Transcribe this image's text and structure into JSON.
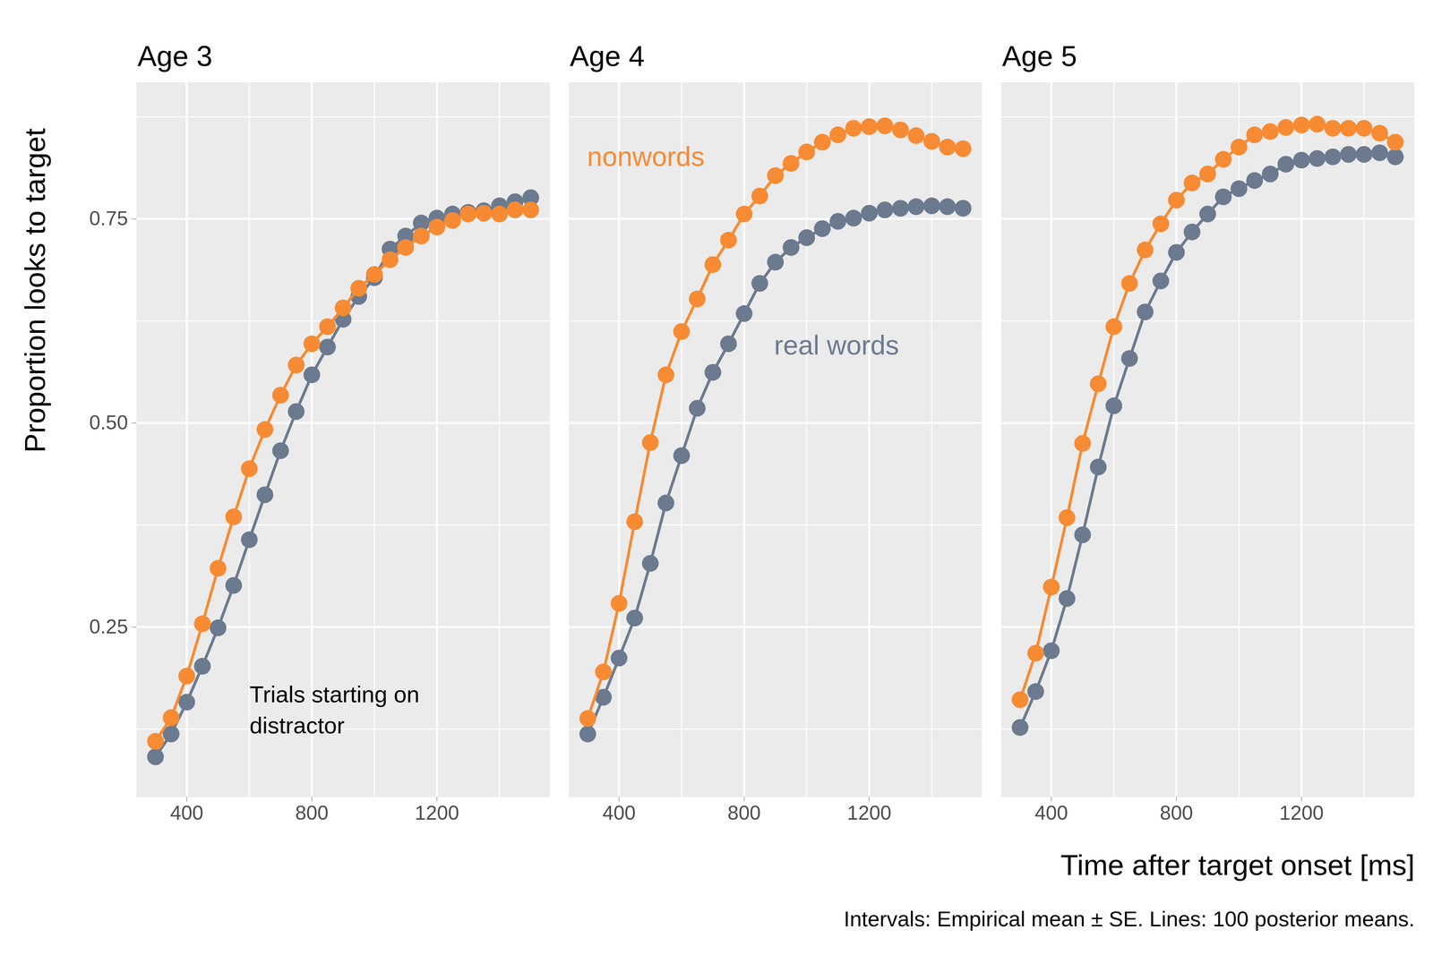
{
  "chart_data": {
    "type": "line",
    "marker": "circle",
    "grid": true,
    "panels": [
      "Age 3",
      "Age 4",
      "Age 5"
    ],
    "x_label": "Time after target onset [ms]",
    "y_label": "Proportion looks to target",
    "caption": "Intervals: Empirical mean ± SE. Lines: 100 posterior means.",
    "x": [
      300,
      350,
      400,
      450,
      500,
      550,
      600,
      650,
      700,
      750,
      800,
      850,
      900,
      950,
      1000,
      1050,
      1100,
      1150,
      1200,
      1250,
      1300,
      1350,
      1400,
      1450,
      1500
    ],
    "xlim": [
      240,
      1560
    ],
    "xticks": [
      400,
      800,
      1200
    ],
    "ylim": [
      0.042,
      0.917
    ],
    "yticks": [
      0.25,
      {
        "value": 0.5,
        "label": "0.50"
      },
      0.75
    ],
    "series": [
      {
        "name": "nonwords",
        "color": "#f68b33",
        "values": [
          [
            0.11,
            0.139,
            0.19,
            0.254,
            0.322,
            0.385,
            0.444,
            0.492,
            0.534,
            0.571,
            0.597,
            0.618,
            0.641,
            0.665,
            0.682,
            0.7,
            0.715,
            0.729,
            0.74,
            0.748,
            0.756,
            0.757,
            0.756,
            0.761,
            0.761
          ],
          [
            0.138,
            0.195,
            0.279,
            0.379,
            0.476,
            0.559,
            0.612,
            0.652,
            0.694,
            0.724,
            0.756,
            0.778,
            0.803,
            0.818,
            0.832,
            0.844,
            0.853,
            0.861,
            0.863,
            0.864,
            0.859,
            0.852,
            0.845,
            0.838,
            0.836
          ],
          [
            0.161,
            0.218,
            0.299,
            0.384,
            0.475,
            0.548,
            0.618,
            0.671,
            0.712,
            0.744,
            0.773,
            0.794,
            0.805,
            0.823,
            0.838,
            0.853,
            0.857,
            0.862,
            0.865,
            0.866,
            0.861,
            0.861,
            0.861,
            0.855,
            0.844
          ]
        ]
      },
      {
        "name": "real words",
        "color": "#6b7a8f",
        "values": [
          [
            0.091,
            0.119,
            0.158,
            0.202,
            0.249,
            0.301,
            0.357,
            0.412,
            0.466,
            0.514,
            0.559,
            0.593,
            0.627,
            0.655,
            0.678,
            0.713,
            0.729,
            0.745,
            0.751,
            0.756,
            0.758,
            0.76,
            0.766,
            0.771,
            0.776
          ],
          [
            0.119,
            0.164,
            0.212,
            0.261,
            0.328,
            0.402,
            0.46,
            0.518,
            0.562,
            0.597,
            0.634,
            0.671,
            0.697,
            0.715,
            0.727,
            0.738,
            0.747,
            0.751,
            0.757,
            0.761,
            0.763,
            0.765,
            0.766,
            0.765,
            0.763
          ],
          [
            0.127,
            0.171,
            0.221,
            0.285,
            0.363,
            0.446,
            0.521,
            0.579,
            0.636,
            0.674,
            0.709,
            0.734,
            0.756,
            0.777,
            0.787,
            0.797,
            0.805,
            0.817,
            0.822,
            0.824,
            0.826,
            0.829,
            0.829,
            0.831,
            0.826
          ]
        ]
      }
    ],
    "annotations": [
      {
        "series": "nonwords",
        "panel": "Age 4"
      },
      {
        "series": "real words",
        "panel": "Age 4"
      },
      {
        "text": "Trials starting on\ndistractor",
        "panel": "Age 3"
      }
    ]
  }
}
